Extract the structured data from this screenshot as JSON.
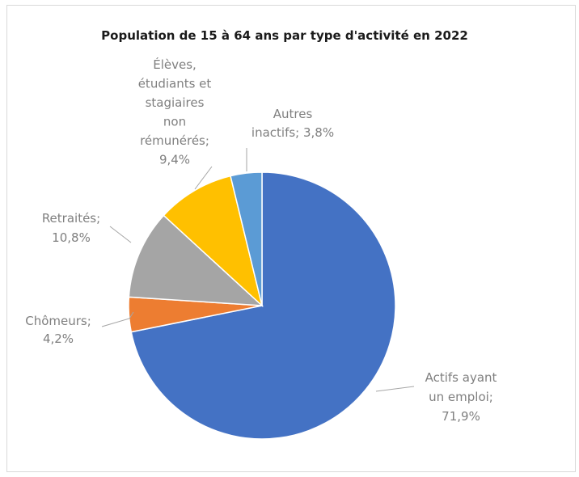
{
  "chart_data": {
    "type": "pie",
    "title": "Population de 15 à 64 ans par type d'activité en 2022",
    "slices": [
      {
        "label": [
          "Actifs ayant",
          "un emploi;",
          "71,9%"
        ],
        "value": 71.9,
        "color": "#4472c4"
      },
      {
        "label": [
          "Chômeurs;",
          "4,2%"
        ],
        "value": 4.2,
        "color": "#ed7d31"
      },
      {
        "label": [
          "Retraités;",
          "10,8%"
        ],
        "value": 10.8,
        "color": "#a5a5a5"
      },
      {
        "label": [
          "Élèves,",
          "étudiants et",
          "stagiaires",
          "non",
          "rémunérés;",
          "9,4%"
        ],
        "value": 9.4,
        "color": "#ffc000"
      },
      {
        "label": [
          "Autres",
          "inactifs; 3,8%"
        ],
        "value": 3.8,
        "color": "#5b9bd5"
      }
    ]
  }
}
